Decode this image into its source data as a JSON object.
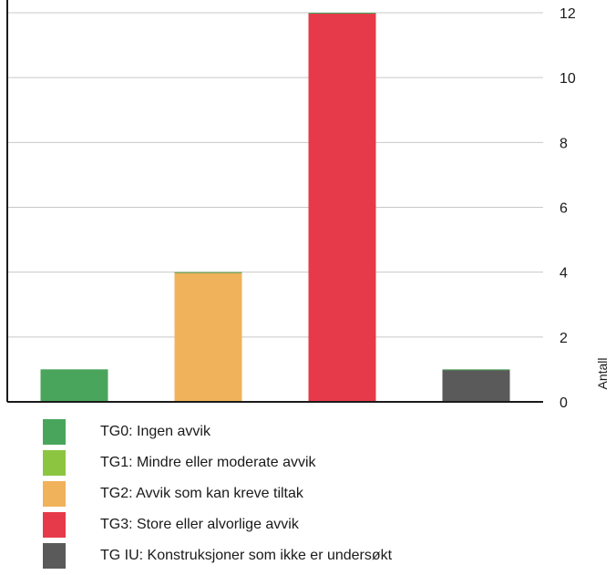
{
  "chart_data": {
    "type": "bar",
    "categories": [
      "TG0",
      "TG2",
      "TG3",
      "TG IU"
    ],
    "values": [
      1,
      4,
      12,
      1
    ],
    "bar_colors": [
      "#4aa55c",
      "#f0b25a",
      "#e63a4a",
      "#5a5a5a"
    ],
    "title": "",
    "xlabel": "",
    "ylabel": "Antall",
    "ylim": [
      0,
      12
    ],
    "yticks": [
      0,
      2,
      4,
      6,
      8,
      10,
      12
    ],
    "y_axis_side": "right",
    "grid": true,
    "legend_position": "bottom"
  },
  "legend": [
    {
      "label": "TG0: Ingen avvik",
      "color": "#4aa55c"
    },
    {
      "label": "TG1: Mindre eller moderate avvik",
      "color": "#8cc641"
    },
    {
      "label": "TG2: Avvik som kan kreve tiltak",
      "color": "#f0b25a"
    },
    {
      "label": "TG3: Store eller alvorlige avvik",
      "color": "#e63a4a"
    },
    {
      "label": "TG IU: Konstruksjoner som ikke er undersøkt",
      "color": "#5a5a5a"
    }
  ]
}
